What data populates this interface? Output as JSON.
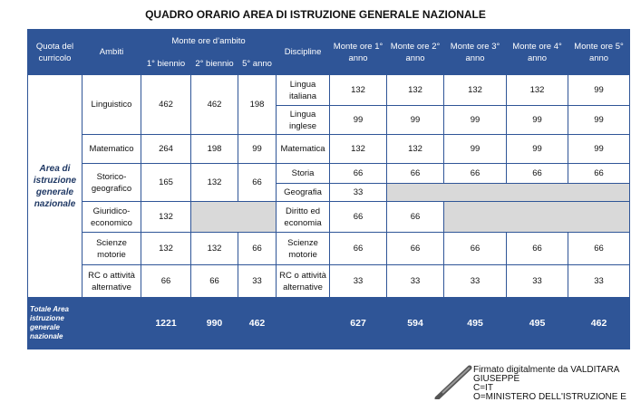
{
  "title": "QUADRO ORARIO AREA DI ISTRUZIONE GENERALE NAZIONALE",
  "table": {
    "head": {
      "quota": "Quota del curricolo",
      "ambiti": "Ambiti",
      "monte_ambito": "Monte ore d’ambito",
      "periodi": [
        "1° biennio",
        "2° biennio",
        "5° anno"
      ],
      "discipline": "Discipline",
      "anni": [
        "Monte ore 1° anno",
        "Monte ore 2° anno",
        "Monte ore 3° anno",
        "Monte ore 4° anno",
        "Monte ore 5° anno"
      ]
    },
    "area": "Area di istruzione generale nazionale",
    "ambiti": [
      {
        "name": "Linguistico",
        "ore": [
          462,
          462,
          198
        ],
        "discipline": [
          {
            "name": "Lingua italiana",
            "ore": [
              132,
              132,
              132,
              132,
              99
            ]
          },
          {
            "name": "Lingua inglese",
            "ore": [
              99,
              99,
              99,
              99,
              99
            ]
          }
        ]
      },
      {
        "name": "Matematico",
        "ore": [
          264,
          198,
          99
        ],
        "discipline": [
          {
            "name": "Matematica",
            "ore": [
              132,
              132,
              99,
              99,
              99
            ]
          }
        ]
      },
      {
        "name": "Storico-geografico",
        "ore": [
          165,
          132,
          66
        ],
        "discipline": [
          {
            "name": "Storia",
            "ore": [
              66,
              66,
              66,
              66,
              66
            ]
          },
          {
            "name": "Geografia",
            "ore": [
              33
            ]
          }
        ]
      },
      {
        "name": "Giuridico-economico",
        "ore": [
          132
        ],
        "discipline": [
          {
            "name": "Diritto ed economia",
            "ore": [
              66,
              66
            ]
          }
        ]
      },
      {
        "name": "Scienze motorie",
        "ore": [
          132,
          132,
          66
        ],
        "discipline": [
          {
            "name": "Scienze motorie",
            "ore": [
              66,
              66,
              66,
              66,
              66
            ]
          }
        ]
      },
      {
        "name": "RC o attività alternative",
        "ore": [
          66,
          66,
          33
        ],
        "discipline": [
          {
            "name": "RC o attività alternative",
            "ore": [
              33,
              33,
              33,
              33,
              33
            ]
          }
        ]
      }
    ],
    "totale": {
      "label": "Totale Area istruzione generale nazionale",
      "ore_ambito": [
        1221,
        990,
        462
      ],
      "ore_anni": [
        627,
        594,
        495,
        495,
        462
      ]
    }
  },
  "signature": [
    "Firmato digitalmente da VALDITARA",
    "GIUSEPPE",
    "C=IT",
    "O=MINISTERO DELL'ISTRUZIONE E"
  ]
}
